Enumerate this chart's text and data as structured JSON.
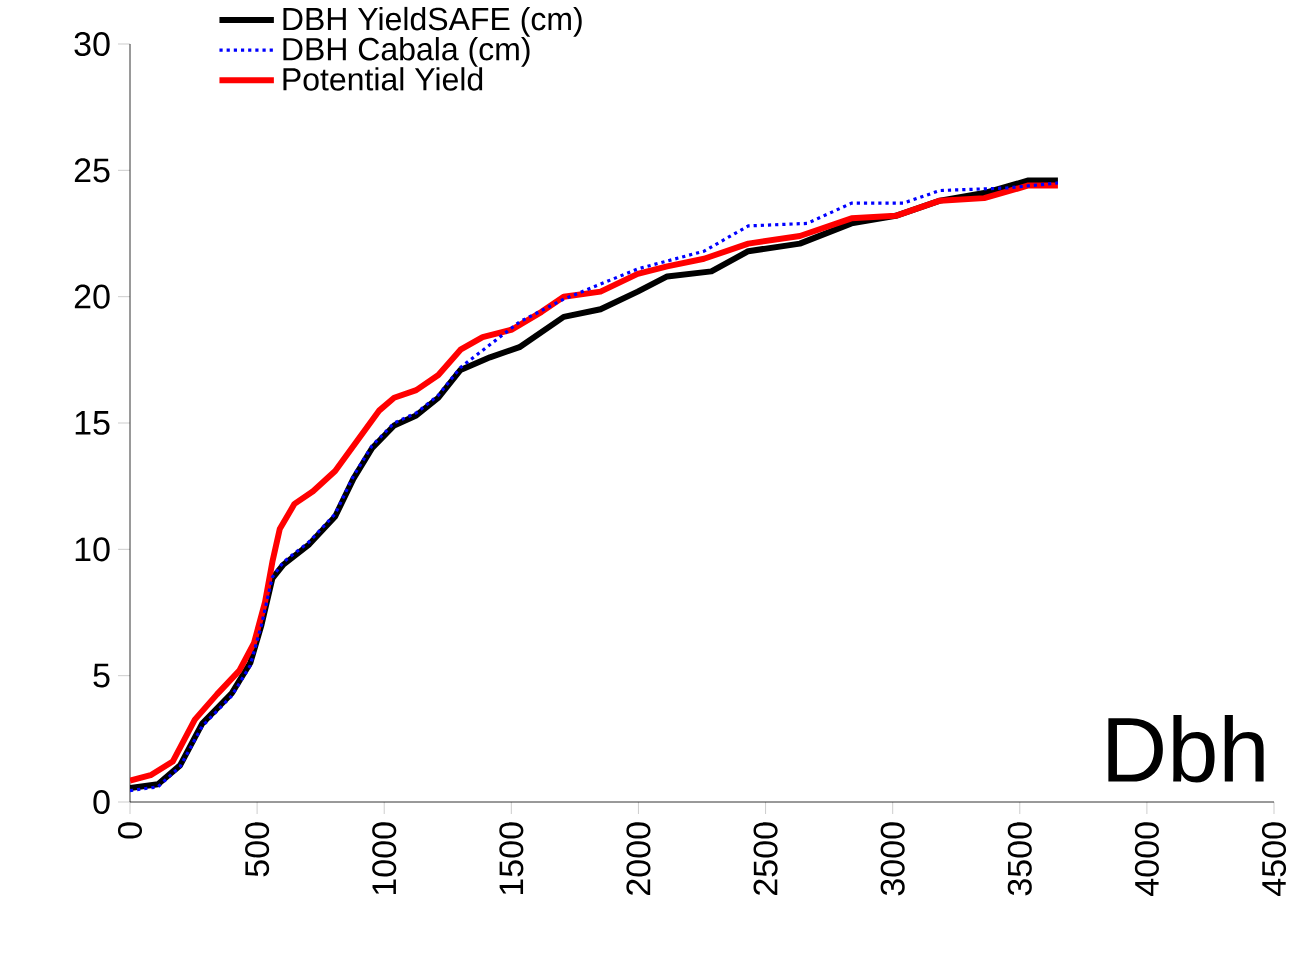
{
  "chart_data": {
    "type": "line",
    "annotations": [
      "Dbh"
    ],
    "xlim": [
      0,
      4500
    ],
    "xticks": [
      0,
      500,
      1000,
      1500,
      2000,
      2500,
      3000,
      3500,
      4000,
      4500
    ],
    "ylim": [
      0,
      30
    ],
    "yticks": [
      0,
      5,
      10,
      15,
      20,
      25,
      30
    ],
    "grid": false,
    "legend": "top left",
    "marker": "none",
    "series": [
      {
        "name": "DBH YieldSAFE (cm)",
        "color": "#000000",
        "line_style": "solid",
        "x": [
          0,
          110,
          197,
          284,
          400,
          473,
          517,
          560,
          604,
          705,
          807,
          879,
          952,
          1039,
          1126,
          1213,
          1300,
          1416,
          1532,
          1706,
          1851,
          1997,
          2113,
          2287,
          2432,
          2635,
          2838,
          3012,
          3186,
          3360,
          3534,
          3650
        ],
        "values": [
          0.55,
          0.7,
          1.45,
          3.1,
          4.3,
          5.5,
          7.0,
          8.85,
          9.4,
          10.2,
          11.3,
          12.8,
          14.0,
          14.9,
          15.3,
          16.0,
          17.1,
          17.6,
          18.0,
          19.2,
          19.5,
          20.2,
          20.8,
          21.0,
          21.8,
          22.1,
          22.9,
          23.2,
          23.8,
          24.1,
          24.6,
          24.6
        ]
      },
      {
        "name": "DBH Cabala (cm)",
        "color": "#0000ff",
        "line_style": "dotted",
        "x": [
          0,
          110,
          197,
          284,
          400,
          473,
          517,
          560,
          604,
          705,
          807,
          879,
          952,
          1039,
          1126,
          1213,
          1300,
          1532,
          1706,
          1997,
          2258,
          2432,
          2664,
          2838,
          3041,
          3186,
          3447,
          3650
        ],
        "values": [
          0.45,
          0.6,
          1.4,
          3.0,
          4.2,
          5.4,
          7.0,
          8.9,
          9.5,
          10.3,
          11.4,
          12.9,
          14.1,
          15.0,
          15.4,
          16.1,
          17.2,
          19.0,
          19.9,
          21.1,
          21.8,
          22.8,
          22.9,
          23.7,
          23.7,
          24.2,
          24.3,
          24.5
        ]
      },
      {
        "name": "Potential Yield",
        "color": "#ff0000",
        "line_style": "solid",
        "x": [
          0,
          81,
          168,
          255,
          342,
          430,
          488,
          531,
          560,
          589,
          647,
          720,
          807,
          894,
          981,
          1039,
          1126,
          1213,
          1300,
          1387,
          1503,
          1619,
          1706,
          1851,
          1997,
          2113,
          2258,
          2432,
          2635,
          2838,
          3012,
          3186,
          3360,
          3534,
          3650
        ],
        "values": [
          0.85,
          1.06,
          1.6,
          3.26,
          4.26,
          5.2,
          6.3,
          7.9,
          9.5,
          10.8,
          11.8,
          12.3,
          13.1,
          14.3,
          15.5,
          16.0,
          16.3,
          16.9,
          17.9,
          18.4,
          18.7,
          19.4,
          20.0,
          20.2,
          20.9,
          21.2,
          21.5,
          22.1,
          22.4,
          23.1,
          23.2,
          23.8,
          23.9,
          24.4,
          24.4
        ]
      }
    ]
  }
}
